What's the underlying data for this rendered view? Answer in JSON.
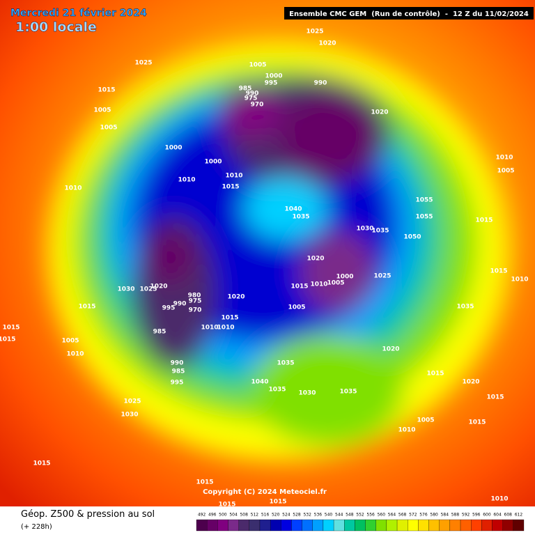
{
  "header": {
    "date": "Mercredi 21 février 2024",
    "time": "1:00 locale",
    "run": "Ensemble CMC GEM  (Run de contrôle)  -  12 Z du 11/02/2024"
  },
  "copyright": "Copyright (C) 2024 Meteociel.fr",
  "footer": {
    "title": "Géop. Z500 & pression au sol",
    "lead": "(+ 228h)"
  },
  "isobars": [
    "1025",
    "1020",
    "1025",
    "1005",
    "1000",
    "995",
    "990",
    "985",
    "990",
    "975",
    "970",
    "1015",
    "1005",
    "1005",
    "1020",
    "1000",
    "1000",
    "1010",
    "1010",
    "1015",
    "1010",
    "1010",
    "1005",
    "1055",
    "1055",
    "1015",
    "1040",
    "1035",
    "1030",
    "1035",
    "1050",
    "1020",
    "1000",
    "1005",
    "1010",
    "1015",
    "1025",
    "1015",
    "1010",
    "1030",
    "1025",
    "1020",
    "980",
    "975",
    "990",
    "970",
    "995",
    "1020",
    "1005",
    "1035",
    "1015",
    "1015",
    "1015",
    "985",
    "1010",
    "1010",
    "1015",
    "1005",
    "1010",
    "1020",
    "990",
    "985",
    "995",
    "1035",
    "1015",
    "1040",
    "1035",
    "1030",
    "1035",
    "1020",
    "1015",
    "1025",
    "1030",
    "1005",
    "1015",
    "1010",
    "1015",
    "1015",
    "1015",
    "1015",
    "1010",
    "1010"
  ],
  "legend": [
    {
      "label": "492",
      "color": "#4d004d"
    },
    {
      "label": "496",
      "color": "#660066"
    },
    {
      "label": "500",
      "color": "#800080"
    },
    {
      "label": "504",
      "color": "#7a2a8a"
    },
    {
      "label": "508",
      "color": "#4b2a6b"
    },
    {
      "label": "512",
      "color": "#3a2e6e"
    },
    {
      "label": "516",
      "color": "#1f1f8f"
    },
    {
      "label": "520",
      "color": "#0000b0"
    },
    {
      "label": "524",
      "color": "#0000e0"
    },
    {
      "label": "528",
      "color": "#0040ff"
    },
    {
      "label": "532",
      "color": "#0070ff"
    },
    {
      "label": "536",
      "color": "#00a0ff"
    },
    {
      "label": "540",
      "color": "#00d0ff"
    },
    {
      "label": "544",
      "color": "#60e0e0"
    },
    {
      "label": "548",
      "color": "#00c8a0"
    },
    {
      "label": "552",
      "color": "#00c060"
    },
    {
      "label": "556",
      "color": "#30d030"
    },
    {
      "label": "560",
      "color": "#80e000"
    },
    {
      "label": "564",
      "color": "#b0f000"
    },
    {
      "label": "568",
      "color": "#e0f000"
    },
    {
      "label": "572",
      "color": "#ffff00"
    },
    {
      "label": "576",
      "color": "#ffe000"
    },
    {
      "label": "580",
      "color": "#ffc000"
    },
    {
      "label": "584",
      "color": "#ffa000"
    },
    {
      "label": "588",
      "color": "#ff8000"
    },
    {
      "label": "592",
      "color": "#ff6000"
    },
    {
      "label": "596",
      "color": "#ff4000"
    },
    {
      "label": "600",
      "color": "#e02000"
    },
    {
      "label": "604",
      "color": "#c00000"
    },
    {
      "label": "608",
      "color": "#900000"
    },
    {
      "label": "612",
      "color": "#600000"
    }
  ]
}
